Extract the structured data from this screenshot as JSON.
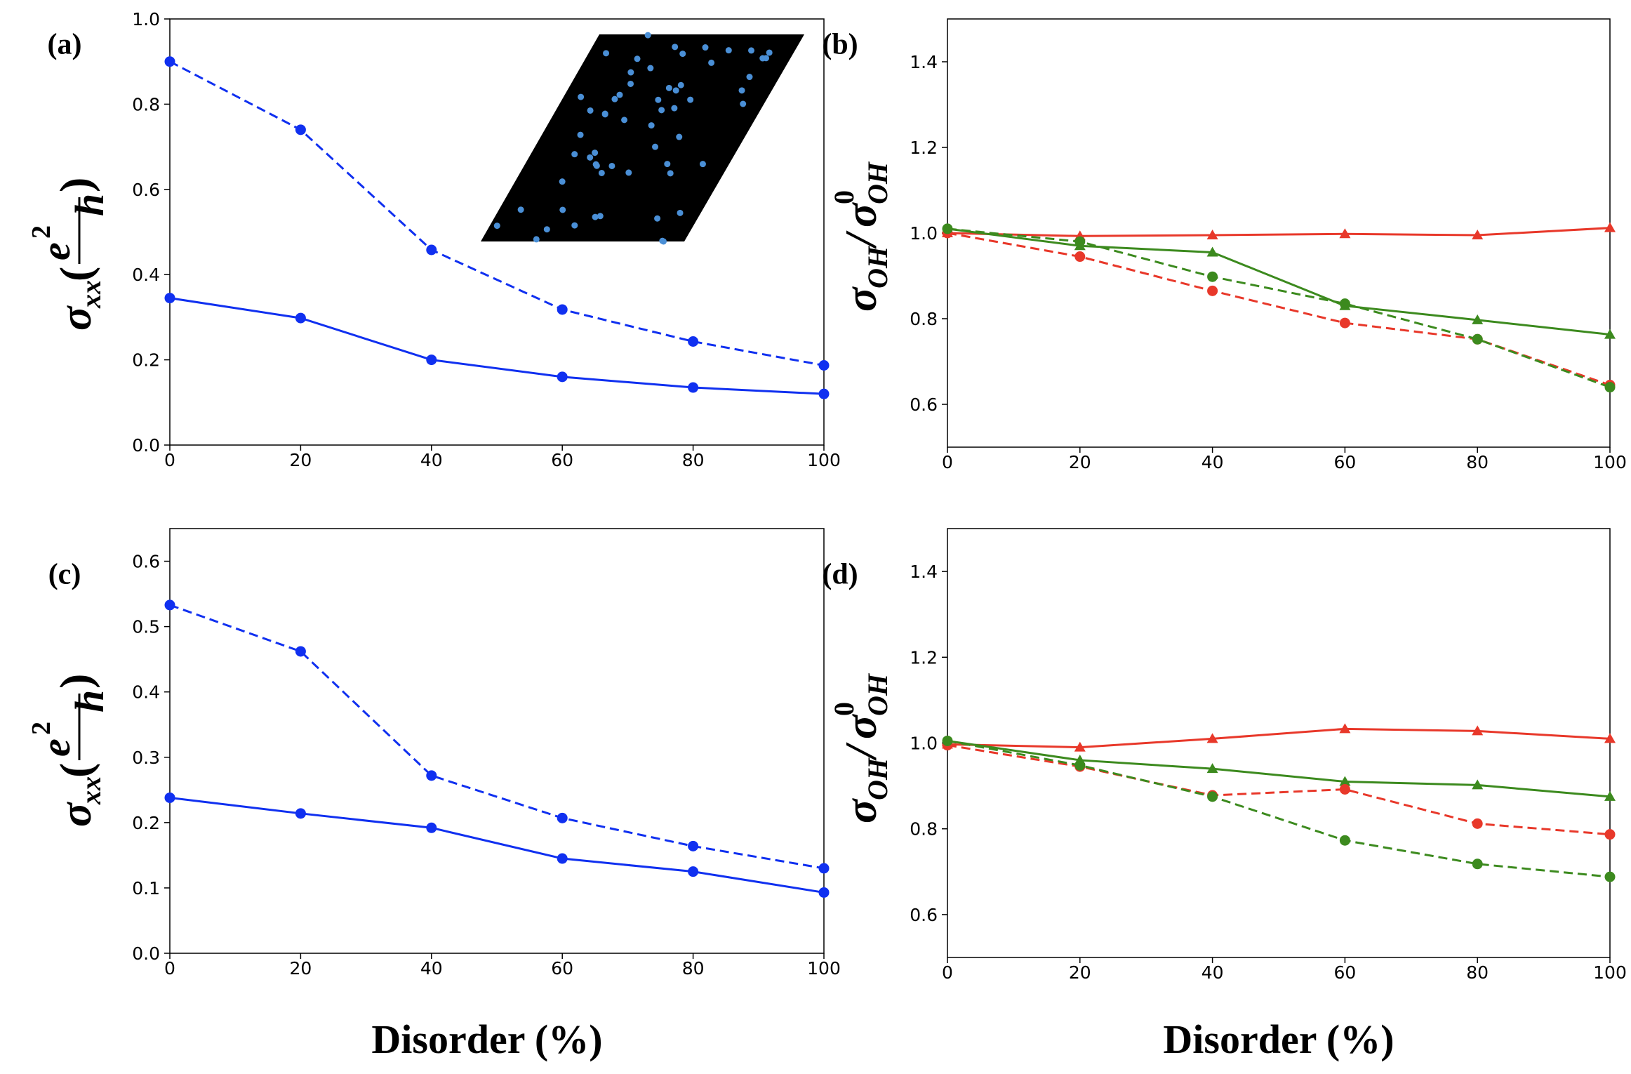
{
  "xlabel": "Disorder (%)",
  "chart_data": [
    {
      "type": "line",
      "label": "(a)",
      "ylabel": [
        "σ",
        "xx",
        "(",
        "e",
        "2",
        "h",
        ")"
      ],
      "x": [
        0,
        20,
        40,
        60,
        80,
        100
      ],
      "xlim": [
        0,
        100
      ],
      "xticks": [
        0,
        20,
        40,
        60,
        80,
        100
      ],
      "ylim": [
        0,
        1
      ],
      "yticks": [
        {
          "value": 0,
          "label": "0.0"
        },
        0.2,
        0.4,
        0.6,
        0.8,
        {
          "value": 1,
          "label": "1.0"
        }
      ],
      "grid": false,
      "series": [
        {
          "color": "#1030f0",
          "dash": true,
          "marker": "circle",
          "values": [
            0.9,
            0.74,
            0.458,
            0.318,
            0.243,
            0.187
          ]
        },
        {
          "color": "#1030f0",
          "dash": false,
          "marker": "circle",
          "values": [
            0.345,
            0.298,
            0.2,
            0.16,
            0.135,
            0.12
          ]
        }
      ]
    },
    {
      "type": "line",
      "label": "(b)",
      "ylabel": [
        "σ",
        "OH",
        "/",
        "σ",
        "0",
        "OH"
      ],
      "x": [
        0,
        20,
        40,
        60,
        80,
        100
      ],
      "xlim": [
        0,
        100
      ],
      "xticks": [
        0,
        20,
        40,
        60,
        80,
        100
      ],
      "ylim": [
        0.5,
        1.5
      ],
      "yticks": [
        0.6,
        0.8,
        {
          "value": 1,
          "label": "1.0"
        },
        1.2,
        1.4
      ],
      "grid": false,
      "series": [
        {
          "color": "#e8382a",
          "dash": false,
          "marker": "triangle",
          "values": [
            1.0,
            0.993,
            0.995,
            0.998,
            0.995,
            1.012
          ]
        },
        {
          "color": "#3c8a1e",
          "dash": false,
          "marker": "triangle",
          "values": [
            1.01,
            0.97,
            0.955,
            0.83,
            0.797,
            0.763
          ]
        },
        {
          "color": "#e8382a",
          "dash": true,
          "marker": "circle",
          "values": [
            1.0,
            0.945,
            0.865,
            0.79,
            0.752,
            0.645
          ]
        },
        {
          "color": "#3c8a1e",
          "dash": true,
          "marker": "circle",
          "values": [
            1.01,
            0.98,
            0.898,
            0.835,
            0.752,
            0.64
          ]
        }
      ]
    },
    {
      "type": "line",
      "label": "(c)",
      "ylabel": [
        "σ",
        "xx",
        "(",
        "e",
        "2",
        "h",
        ")"
      ],
      "x": [
        0,
        20,
        40,
        60,
        80,
        100
      ],
      "xlim": [
        0,
        100
      ],
      "xticks": [
        0,
        20,
        40,
        60,
        80,
        100
      ],
      "ylim": [
        0,
        0.65
      ],
      "yticks": [
        {
          "value": 0,
          "label": "0.0"
        },
        0.1,
        0.2,
        0.3,
        0.4,
        0.5,
        0.6
      ],
      "grid": false,
      "series": [
        {
          "color": "#1030f0",
          "dash": true,
          "marker": "circle",
          "values": [
            0.533,
            0.462,
            0.272,
            0.207,
            0.164,
            0.13
          ]
        },
        {
          "color": "#1030f0",
          "dash": false,
          "marker": "circle",
          "values": [
            0.238,
            0.214,
            0.192,
            0.145,
            0.125,
            0.093
          ]
        }
      ]
    },
    {
      "type": "line",
      "label": "(d)",
      "ylabel": [
        "σ",
        "OH",
        "/",
        "σ",
        "0",
        "OH"
      ],
      "x": [
        0,
        20,
        40,
        60,
        80,
        100
      ],
      "xlim": [
        0,
        100
      ],
      "xticks": [
        0,
        20,
        40,
        60,
        80,
        100
      ],
      "ylim": [
        0.5,
        1.5
      ],
      "yticks": [
        0.6,
        0.8,
        {
          "value": 1,
          "label": "1.0"
        },
        1.2,
        1.4
      ],
      "grid": false,
      "series": [
        {
          "color": "#e8382a",
          "dash": false,
          "marker": "triangle",
          "values": [
            0.997,
            0.99,
            1.01,
            1.033,
            1.028,
            1.01
          ]
        },
        {
          "color": "#3c8a1e",
          "dash": false,
          "marker": "triangle",
          "values": [
            1.005,
            0.96,
            0.94,
            0.91,
            0.902,
            0.875
          ]
        },
        {
          "color": "#e8382a",
          "dash": true,
          "marker": "circle",
          "values": [
            0.995,
            0.945,
            0.878,
            0.892,
            0.812,
            0.787
          ]
        },
        {
          "color": "#3c8a1e",
          "dash": true,
          "marker": "circle",
          "values": [
            1.005,
            0.948,
            0.875,
            0.773,
            0.718,
            0.688
          ]
        }
      ]
    }
  ]
}
